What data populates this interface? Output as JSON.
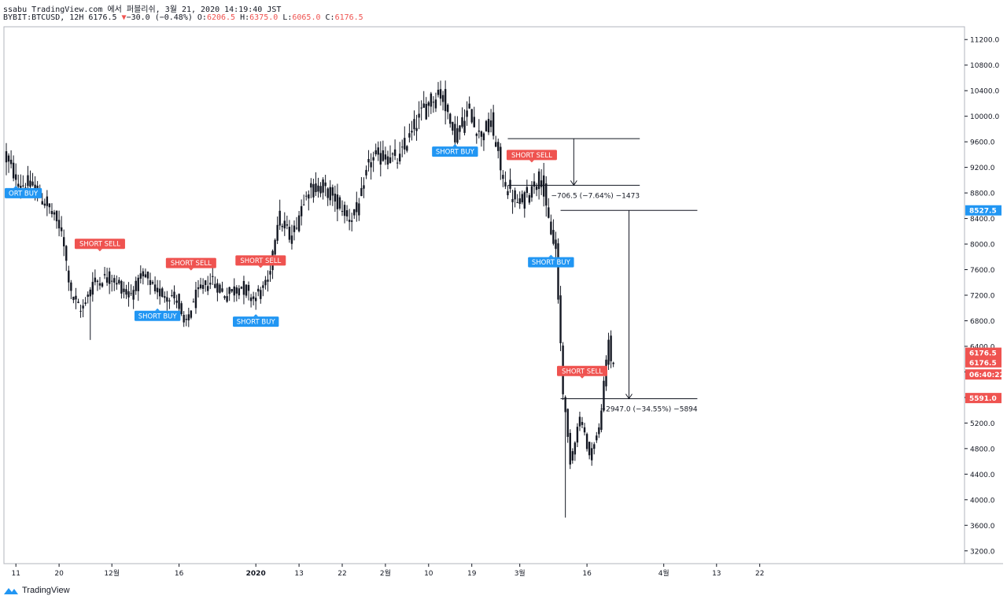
{
  "header": {
    "publish_line": "ssabu TradingView.com 에서 퍼블리쉬, 3월 21, 2020 14:19:40 JST",
    "symbol": "BYBIT:BTCUSD, 12H",
    "last": "6176.5",
    "change": "−30.0 (−0.48%)",
    "open_label": "O:",
    "open": "6206.5",
    "high_label": "H:",
    "high": "6375.0",
    "low_label": "L:",
    "low": "6065.0",
    "close_label": "C:",
    "close": "6176.5"
  },
  "footer": {
    "brand": "TradingView"
  },
  "colors": {
    "up": "#26a69a",
    "down": "#ef5350",
    "candle": "#131722",
    "buy": "#2196f3",
    "sell": "#ef5350",
    "grid": "#e0e3eb"
  },
  "chart_data": {
    "type": "candlestick",
    "symbol": "BYBIT:BTCUSD",
    "interval": "12H",
    "ylim": [
      3000,
      11400
    ],
    "y_ticks": [
      3200,
      3600,
      4000,
      4400,
      4800,
      5200,
      5600,
      6000,
      6400,
      6800,
      7200,
      7600,
      8000,
      8400,
      8800,
      9200,
      9600,
      10000,
      10400,
      10800,
      11200
    ],
    "y_tick_labels": [
      "3200.0",
      "3600.0",
      "4000.0",
      "4400.0",
      "4800.0",
      "5200.0",
      "5600.0",
      "6000.0",
      "6400.0",
      "6800.0",
      "7200.0",
      "7600.0",
      "8000.0",
      "8400.0",
      "8800.0",
      "9200.0",
      "9600.0",
      "10000.0",
      "10400.0",
      "10800.0",
      "11200.0"
    ],
    "x_ticks": [
      {
        "label": "11",
        "i": 4
      },
      {
        "label": "20",
        "i": 22
      },
      {
        "label": "12월",
        "i": 44
      },
      {
        "label": "16",
        "i": 72
      },
      {
        "label": "2020",
        "i": 104
      },
      {
        "label": "13",
        "i": 122
      },
      {
        "label": "22",
        "i": 140
      },
      {
        "label": "2월",
        "i": 158
      },
      {
        "label": "10",
        "i": 176
      },
      {
        "label": "19",
        "i": 194
      },
      {
        "label": "3월",
        "i": 214
      },
      {
        "label": "16",
        "i": 242
      },
      {
        "label": "4월",
        "i": 274
      },
      {
        "label": "13",
        "i": 296
      },
      {
        "label": "22",
        "i": 314
      }
    ],
    "price_labels": [
      {
        "label": "8527.5",
        "value": 8527.5,
        "color": "#2196f3"
      },
      {
        "label": "6176.5",
        "value": 6300,
        "color": "#ef5350"
      },
      {
        "label": "6176.5",
        "value": 6150,
        "color": "#ef5350"
      },
      {
        "label": "06:40:22",
        "value": 5960,
        "color": "#ef5350"
      },
      {
        "label": "5591.0",
        "value": 5591,
        "color": "#ef5350"
      }
    ],
    "signals": [
      {
        "label": "ORT BUY",
        "type": "buy",
        "i": 4,
        "price": 8950
      },
      {
        "label": "SHORT SELL",
        "type": "sell",
        "i": 39,
        "price": 7850
      },
      {
        "label": "SHORT BUY",
        "type": "buy",
        "i": 63,
        "price": 7030
      },
      {
        "label": "SHORT SELL",
        "type": "sell",
        "i": 77,
        "price": 7550
      },
      {
        "label": "SHORT SELL",
        "type": "sell",
        "i": 106,
        "price": 7590
      },
      {
        "label": "SHORT BUY",
        "type": "buy",
        "i": 104,
        "price": 6940
      },
      {
        "label": "SHORT BUY",
        "type": "buy",
        "i": 187,
        "price": 9600
      },
      {
        "label": "SHORT SELL",
        "type": "sell",
        "i": 219,
        "price": 9240
      },
      {
        "label": "SHORT BUY",
        "type": "buy",
        "i": 227,
        "price": 7870
      },
      {
        "label": "SHORT SELL",
        "type": "sell",
        "i": 240,
        "price": 5860
      }
    ],
    "measures": [
      {
        "label": "−706.5 (−7.64%) −1473",
        "top": 9650,
        "bottom": 8920,
        "i_start": 209,
        "i_end": 264
      },
      {
        "label": "−2947.0 (−34.55%) −5894",
        "top": 8527.5,
        "bottom": 5580,
        "i_start": 231,
        "i_end": 288
      }
    ],
    "segments": [
      [
        0,
        9400,
        6,
        8950
      ],
      [
        6,
        8950,
        12,
        8900
      ],
      [
        12,
        8900,
        18,
        8600
      ],
      [
        18,
        8600,
        24,
        8200
      ],
      [
        24,
        8200,
        28,
        7200
      ],
      [
        28,
        7200,
        32,
        6950
      ],
      [
        32,
        6950,
        37,
        7400
      ],
      [
        37,
        7400,
        44,
        7500
      ],
      [
        44,
        7500,
        52,
        7200
      ],
      [
        52,
        7200,
        58,
        7500
      ],
      [
        58,
        7500,
        64,
        7250
      ],
      [
        64,
        7250,
        72,
        7150
      ],
      [
        72,
        7150,
        75,
        6700
      ],
      [
        75,
        6700,
        80,
        7200
      ],
      [
        80,
        7200,
        86,
        7450
      ],
      [
        86,
        7450,
        92,
        7200
      ],
      [
        92,
        7200,
        98,
        7350
      ],
      [
        98,
        7350,
        104,
        7150
      ],
      [
        104,
        7150,
        110,
        7400
      ],
      [
        110,
        7400,
        114,
        8400
      ],
      [
        114,
        8400,
        120,
        8100
      ],
      [
        120,
        8100,
        126,
        8850
      ],
      [
        126,
        8850,
        132,
        8900
      ],
      [
        132,
        8900,
        138,
        8700
      ],
      [
        138,
        8700,
        144,
        8400
      ],
      [
        144,
        8400,
        148,
        8600
      ],
      [
        148,
        8600,
        152,
        9300
      ],
      [
        152,
        9300,
        158,
        9400
      ],
      [
        158,
        9400,
        164,
        9300
      ],
      [
        164,
        9300,
        170,
        9800
      ],
      [
        170,
        9800,
        176,
        10200
      ],
      [
        176,
        10200,
        182,
        10400
      ],
      [
        182,
        10400,
        188,
        9700
      ],
      [
        188,
        9700,
        194,
        10100
      ],
      [
        194,
        10100,
        198,
        9700
      ],
      [
        198,
        9700,
        203,
        9900
      ],
      [
        203,
        9900,
        208,
        9000
      ],
      [
        208,
        9000,
        214,
        8600
      ],
      [
        214,
        8600,
        220,
        8900
      ],
      [
        220,
        8900,
        224,
        9100
      ],
      [
        224,
        9100,
        226,
        8500
      ],
      [
        226,
        8500,
        230,
        7900
      ],
      [
        230,
        7900,
        233,
        5700
      ],
      [
        233,
        5700,
        236,
        4600
      ],
      [
        236,
        4600,
        240,
        5300
      ],
      [
        240,
        5300,
        244,
        4700
      ],
      [
        244,
        4700,
        248,
        5100
      ],
      [
        248,
        5100,
        252,
        6500
      ],
      [
        252,
        6500,
        253,
        6177
      ]
    ]
  }
}
